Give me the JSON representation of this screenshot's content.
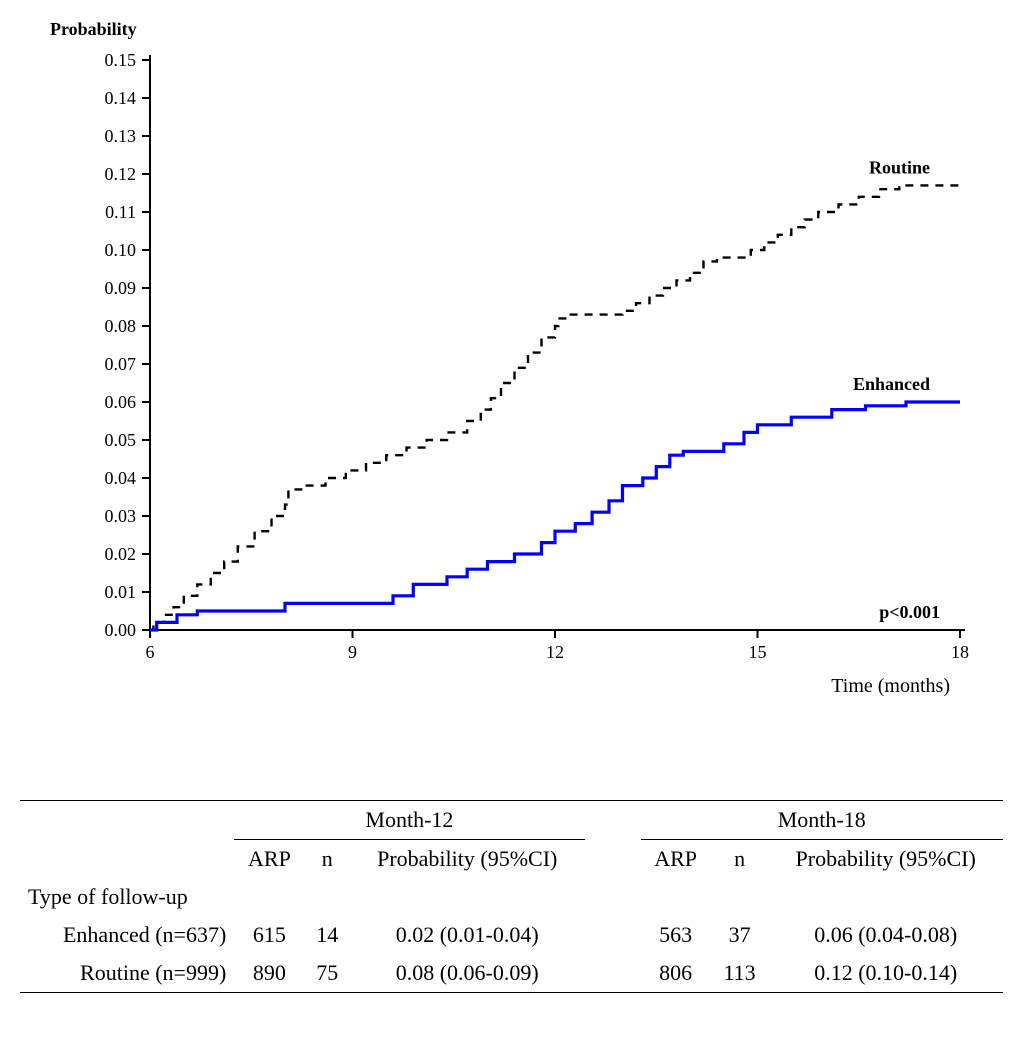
{
  "chart": {
    "type": "line-step",
    "y_title": "Probability",
    "x_title": "Time (months)",
    "pvalue_label": "p<0.001",
    "title_font_family": "Times New Roman",
    "y_title_fontsize": 18,
    "y_title_weight": "bold",
    "x_title_fontsize": 20,
    "x_title_weight": "normal",
    "pvalue_fontsize": 18,
    "pvalue_weight": "bold",
    "background_color": "#ffffff",
    "axis_color": "#000000",
    "tick_fontsize": 18,
    "x": {
      "min": 6,
      "max": 18,
      "ticks": [
        6,
        9,
        12,
        15,
        18
      ]
    },
    "y": {
      "min": 0.0,
      "max": 0.15,
      "ticks": [
        0.0,
        0.01,
        0.02,
        0.03,
        0.04,
        0.05,
        0.06,
        0.07,
        0.08,
        0.09,
        0.1,
        0.11,
        0.12,
        0.13,
        0.14,
        0.15
      ]
    },
    "series": [
      {
        "name": "Routine",
        "label": "Routine",
        "color": "#000000",
        "dash": "8,7",
        "width": 2.4,
        "label_fontsize": 18,
        "label_weight": "bold",
        "points": [
          [
            6.0,
            0.0
          ],
          [
            6.05,
            0.0
          ],
          [
            6.05,
            0.002
          ],
          [
            6.2,
            0.002
          ],
          [
            6.2,
            0.004
          ],
          [
            6.35,
            0.004
          ],
          [
            6.35,
            0.006
          ],
          [
            6.5,
            0.006
          ],
          [
            6.5,
            0.009
          ],
          [
            6.7,
            0.009
          ],
          [
            6.7,
            0.012
          ],
          [
            6.9,
            0.012
          ],
          [
            6.9,
            0.015
          ],
          [
            7.1,
            0.015
          ],
          [
            7.1,
            0.018
          ],
          [
            7.3,
            0.018
          ],
          [
            7.3,
            0.022
          ],
          [
            7.55,
            0.022
          ],
          [
            7.55,
            0.026
          ],
          [
            7.8,
            0.026
          ],
          [
            7.8,
            0.03
          ],
          [
            8.0,
            0.03
          ],
          [
            8.0,
            0.033
          ],
          [
            8.05,
            0.033
          ],
          [
            8.05,
            0.037
          ],
          [
            8.3,
            0.037
          ],
          [
            8.3,
            0.038
          ],
          [
            8.6,
            0.038
          ],
          [
            8.6,
            0.04
          ],
          [
            8.9,
            0.04
          ],
          [
            8.9,
            0.042
          ],
          [
            9.2,
            0.042
          ],
          [
            9.2,
            0.044
          ],
          [
            9.5,
            0.044
          ],
          [
            9.5,
            0.046
          ],
          [
            9.8,
            0.046
          ],
          [
            9.8,
            0.048
          ],
          [
            10.1,
            0.048
          ],
          [
            10.1,
            0.05
          ],
          [
            10.4,
            0.05
          ],
          [
            10.4,
            0.052
          ],
          [
            10.7,
            0.052
          ],
          [
            10.7,
            0.055
          ],
          [
            10.9,
            0.055
          ],
          [
            10.9,
            0.058
          ],
          [
            11.05,
            0.058
          ],
          [
            11.05,
            0.061
          ],
          [
            11.2,
            0.061
          ],
          [
            11.2,
            0.065
          ],
          [
            11.4,
            0.065
          ],
          [
            11.4,
            0.069
          ],
          [
            11.6,
            0.069
          ],
          [
            11.6,
            0.073
          ],
          [
            11.8,
            0.073
          ],
          [
            11.8,
            0.077
          ],
          [
            12.0,
            0.077
          ],
          [
            12.0,
            0.08
          ],
          [
            12.05,
            0.08
          ],
          [
            12.05,
            0.082
          ],
          [
            12.2,
            0.082
          ],
          [
            12.2,
            0.083
          ],
          [
            13.0,
            0.083
          ],
          [
            13.0,
            0.084
          ],
          [
            13.2,
            0.084
          ],
          [
            13.2,
            0.086
          ],
          [
            13.4,
            0.086
          ],
          [
            13.4,
            0.088
          ],
          [
            13.6,
            0.088
          ],
          [
            13.6,
            0.09
          ],
          [
            13.8,
            0.09
          ],
          [
            13.8,
            0.092
          ],
          [
            14.0,
            0.092
          ],
          [
            14.0,
            0.094
          ],
          [
            14.2,
            0.094
          ],
          [
            14.2,
            0.097
          ],
          [
            14.4,
            0.097
          ],
          [
            14.4,
            0.098
          ],
          [
            14.9,
            0.098
          ],
          [
            14.9,
            0.1
          ],
          [
            15.1,
            0.1
          ],
          [
            15.1,
            0.102
          ],
          [
            15.3,
            0.102
          ],
          [
            15.3,
            0.104
          ],
          [
            15.5,
            0.104
          ],
          [
            15.5,
            0.106
          ],
          [
            15.7,
            0.106
          ],
          [
            15.7,
            0.108
          ],
          [
            15.9,
            0.108
          ],
          [
            15.9,
            0.11
          ],
          [
            16.2,
            0.11
          ],
          [
            16.2,
            0.112
          ],
          [
            16.5,
            0.112
          ],
          [
            16.5,
            0.114
          ],
          [
            16.8,
            0.114
          ],
          [
            16.8,
            0.116
          ],
          [
            17.1,
            0.116
          ],
          [
            17.1,
            0.117
          ],
          [
            18.0,
            0.117
          ]
        ]
      },
      {
        "name": "Enhanced",
        "label": "Enhanced",
        "color": "#0000fe",
        "dash": "",
        "width": 3.2,
        "label_fontsize": 18,
        "label_weight": "bold",
        "points": [
          [
            6.0,
            0.0
          ],
          [
            6.1,
            0.0
          ],
          [
            6.1,
            0.002
          ],
          [
            6.4,
            0.002
          ],
          [
            6.4,
            0.004
          ],
          [
            6.7,
            0.004
          ],
          [
            6.7,
            0.005
          ],
          [
            8.0,
            0.005
          ],
          [
            8.0,
            0.007
          ],
          [
            9.6,
            0.007
          ],
          [
            9.6,
            0.009
          ],
          [
            9.9,
            0.009
          ],
          [
            9.9,
            0.012
          ],
          [
            10.4,
            0.012
          ],
          [
            10.4,
            0.014
          ],
          [
            10.7,
            0.014
          ],
          [
            10.7,
            0.016
          ],
          [
            11.0,
            0.016
          ],
          [
            11.0,
            0.018
          ],
          [
            11.4,
            0.018
          ],
          [
            11.4,
            0.02
          ],
          [
            11.8,
            0.02
          ],
          [
            11.8,
            0.023
          ],
          [
            12.0,
            0.023
          ],
          [
            12.0,
            0.026
          ],
          [
            12.3,
            0.026
          ],
          [
            12.3,
            0.028
          ],
          [
            12.55,
            0.028
          ],
          [
            12.55,
            0.031
          ],
          [
            12.8,
            0.031
          ],
          [
            12.8,
            0.034
          ],
          [
            13.0,
            0.034
          ],
          [
            13.0,
            0.038
          ],
          [
            13.3,
            0.038
          ],
          [
            13.3,
            0.04
          ],
          [
            13.5,
            0.04
          ],
          [
            13.5,
            0.043
          ],
          [
            13.7,
            0.043
          ],
          [
            13.7,
            0.046
          ],
          [
            13.9,
            0.046
          ],
          [
            13.9,
            0.047
          ],
          [
            14.5,
            0.047
          ],
          [
            14.5,
            0.049
          ],
          [
            14.8,
            0.049
          ],
          [
            14.8,
            0.052
          ],
          [
            15.0,
            0.052
          ],
          [
            15.0,
            0.054
          ],
          [
            15.5,
            0.054
          ],
          [
            15.5,
            0.056
          ],
          [
            16.1,
            0.056
          ],
          [
            16.1,
            0.058
          ],
          [
            16.6,
            0.058
          ],
          [
            16.6,
            0.059
          ],
          [
            17.2,
            0.059
          ],
          [
            17.2,
            0.06
          ],
          [
            18.0,
            0.06
          ]
        ]
      }
    ]
  },
  "table": {
    "row_header_label": "Type of follow-up",
    "timepoints": [
      {
        "label": "Month-12",
        "cols": [
          "ARP",
          "n",
          "Probability (95%CI)"
        ]
      },
      {
        "label": "Month-18",
        "cols": [
          "ARP",
          "n",
          "Probability (95%CI)"
        ]
      }
    ],
    "rows": [
      {
        "label": "Enhanced (n=637)",
        "t12": {
          "arp": "615",
          "n": "14",
          "prob": "0.02 (0.01-0.04)"
        },
        "t18": {
          "arp": "563",
          "n": "37",
          "prob": "0.06 (0.04-0.08)"
        }
      },
      {
        "label": "Routine (n=999)",
        "t12": {
          "arp": "890",
          "n": "75",
          "prob": "0.08 (0.06-0.09)"
        },
        "t18": {
          "arp": "806",
          "n": "113",
          "prob": "0.12 (0.10-0.14)"
        }
      }
    ],
    "font_family": "Times New Roman",
    "font_size": 22,
    "text_color": "#000000"
  }
}
